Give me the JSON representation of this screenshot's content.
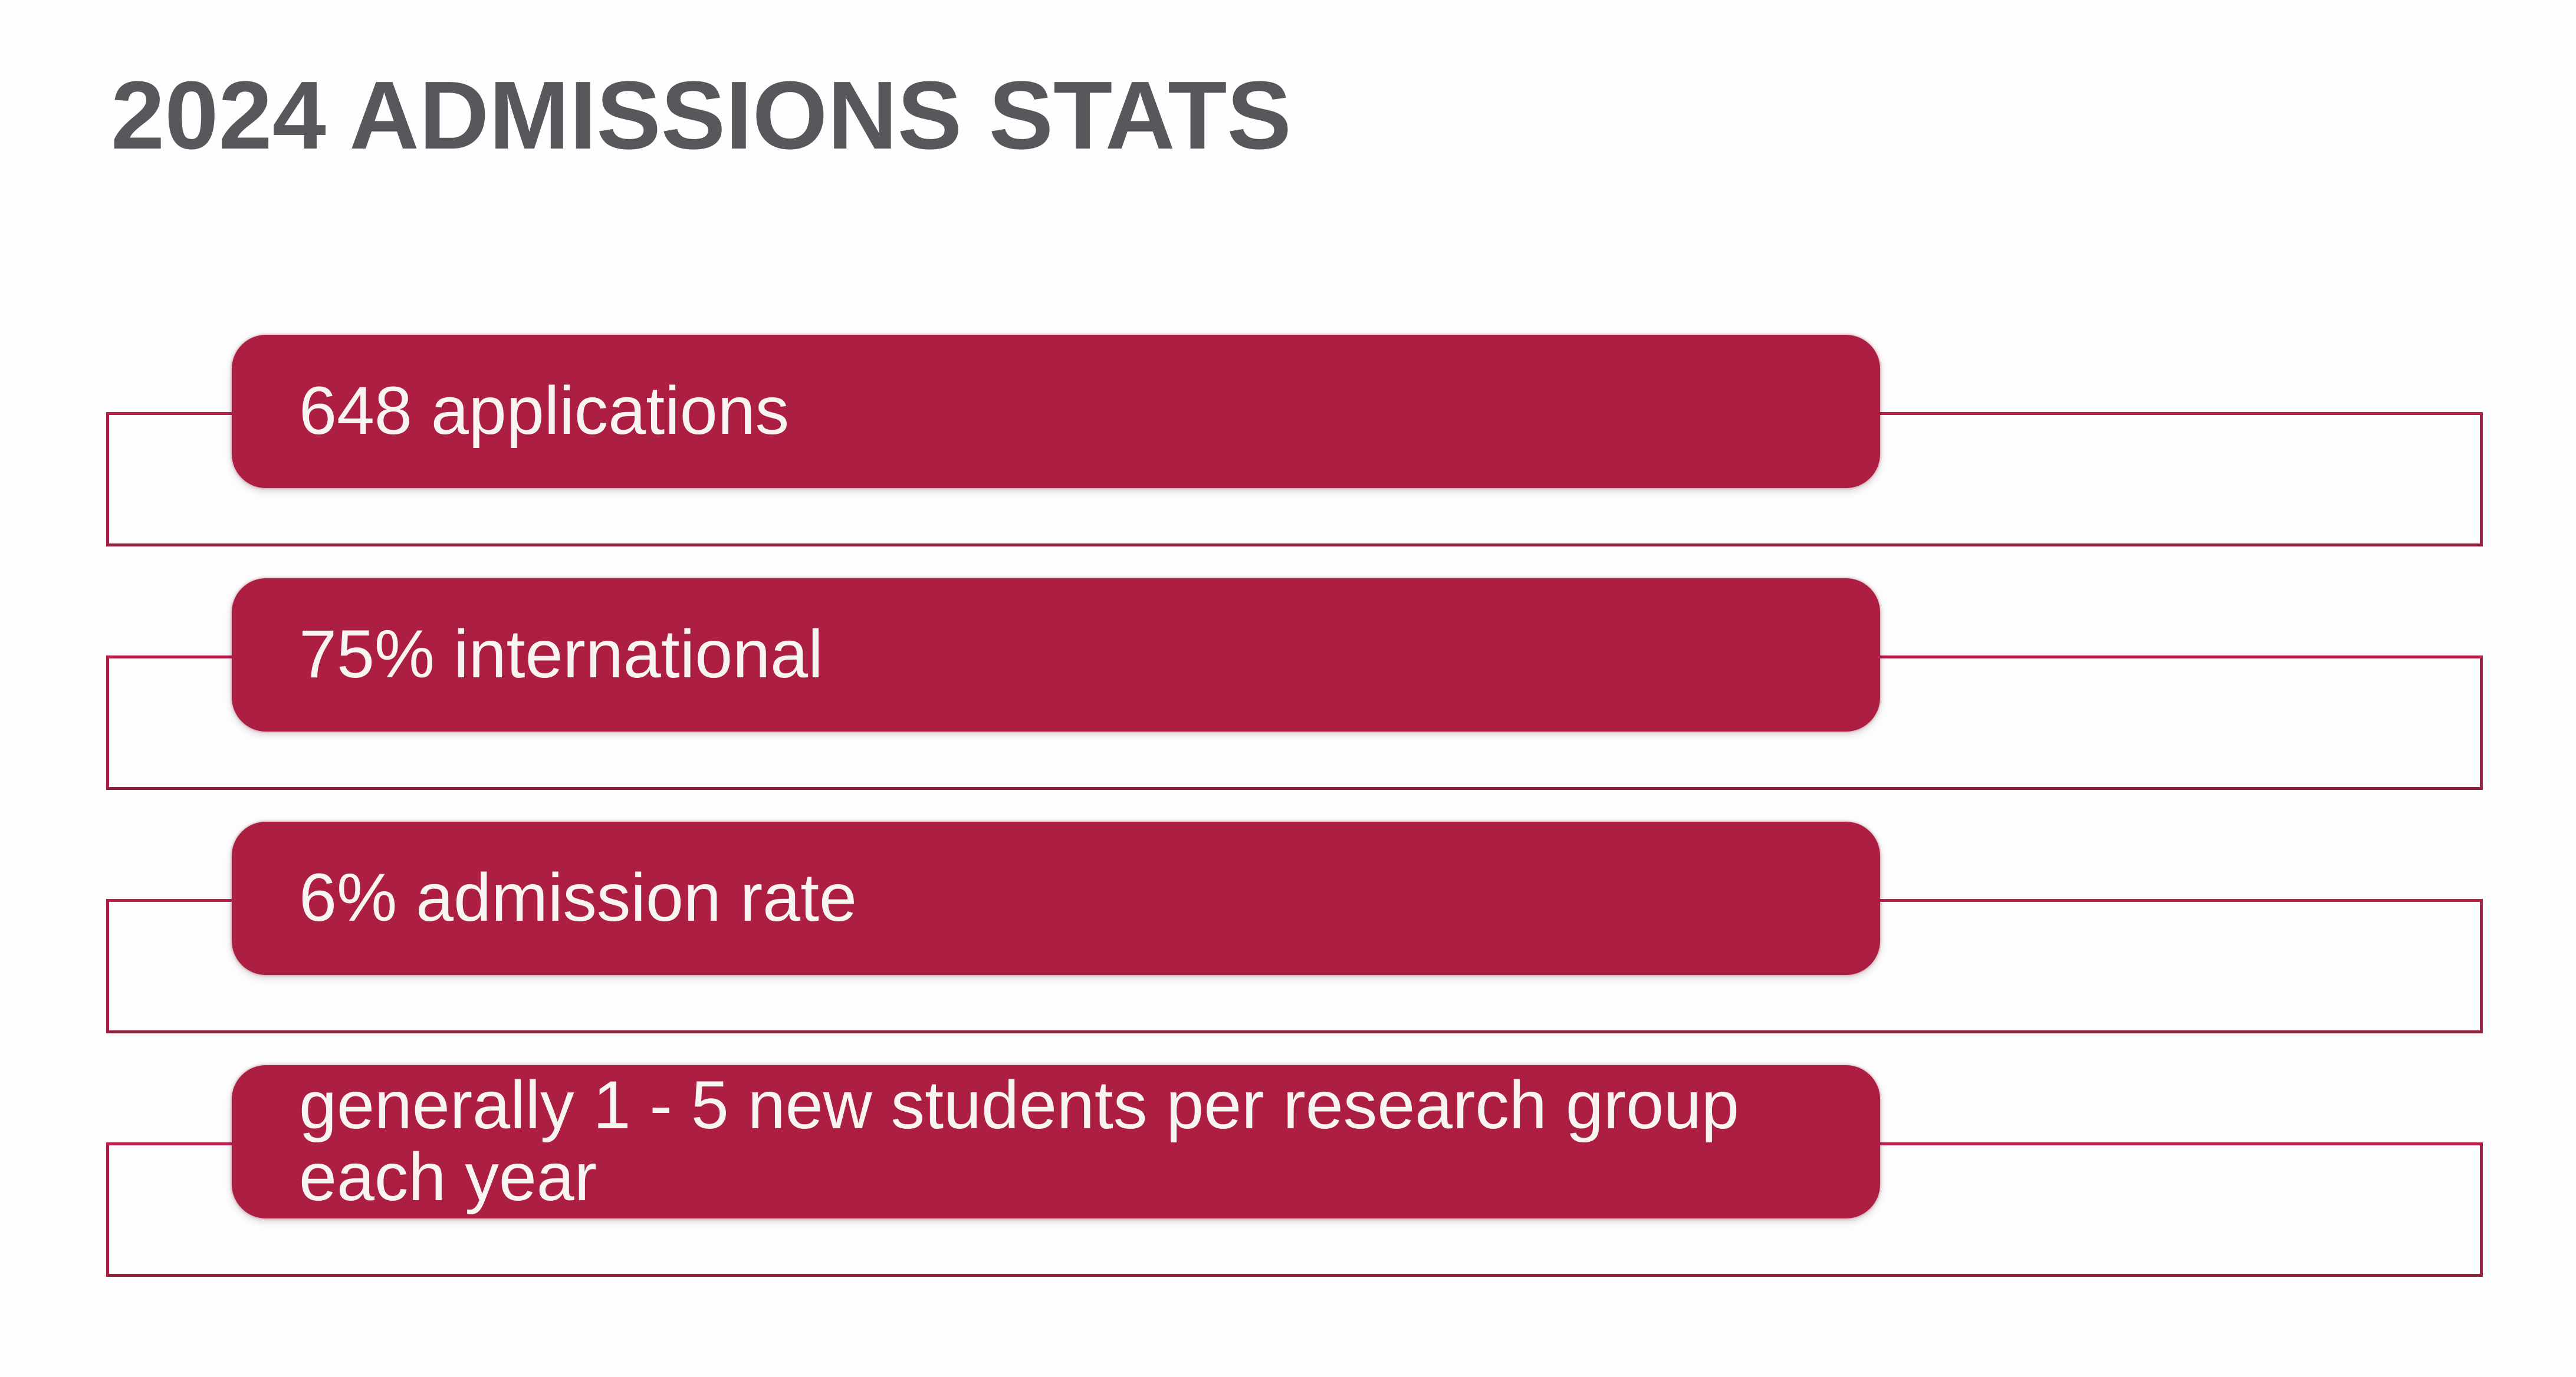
{
  "slide": {
    "title": "2024 ADMISSIONS STATS"
  },
  "stats": [
    {
      "label": "648 applications"
    },
    {
      "label": "75% international"
    },
    {
      "label": "6% admission rate"
    },
    {
      "label": "generally 1 - 5 new students per research group each year"
    }
  ],
  "colors": {
    "background": "#FDFDFD",
    "title_text": "#57585C",
    "box_fill": "#AC1F42",
    "box_text": "#F8F4F2",
    "outline_top": "#BC2049",
    "outline_side": "#A82045",
    "outline_bottom": "#8F2139"
  }
}
